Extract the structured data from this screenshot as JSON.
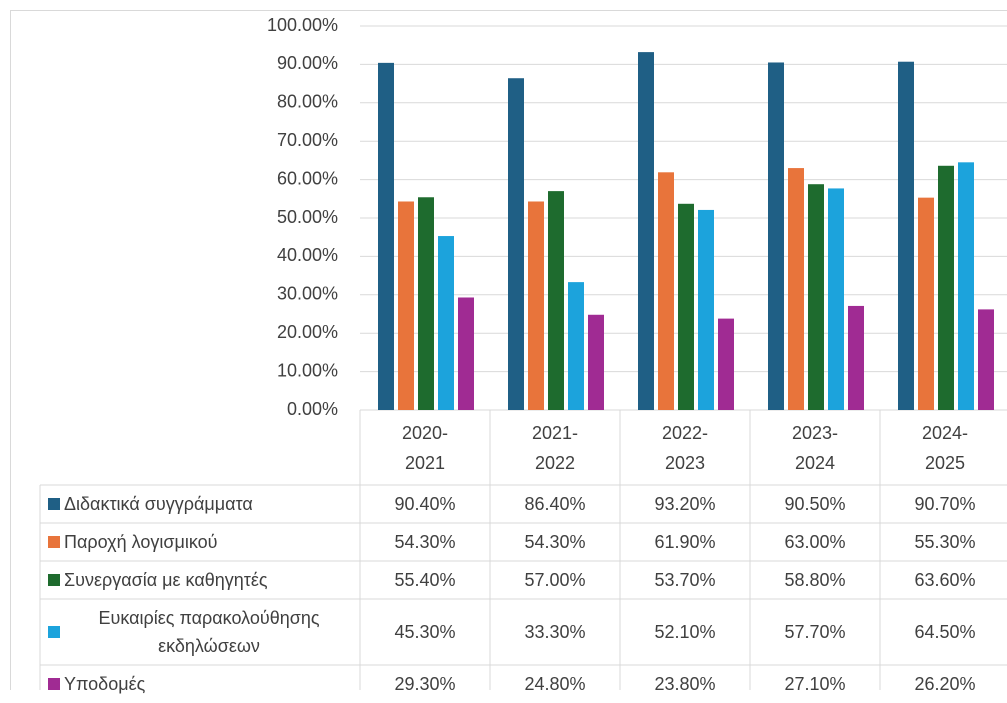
{
  "chart_data": {
    "type": "bar",
    "categories": [
      "2020-2021",
      "2021-2022",
      "2022-2023",
      "2023-2024",
      "2024-2025"
    ],
    "series": [
      {
        "name": "Διδακτικά συγγράμματα",
        "color": "#1f5f85",
        "values": [
          90.4,
          86.4,
          93.2,
          90.5,
          90.7
        ],
        "value_labels": [
          "90.40%",
          "86.40%",
          "93.20%",
          "90.50%",
          "90.70%"
        ]
      },
      {
        "name": "Παροχή λογισμικού",
        "color": "#e8743b",
        "values": [
          54.3,
          54.3,
          61.9,
          63.0,
          55.3
        ],
        "value_labels": [
          "54.30%",
          "54.30%",
          "61.90%",
          "63.00%",
          "55.30%"
        ]
      },
      {
        "name": "Συνεργασία με καθηγητές",
        "color": "#1e6b2e",
        "values": [
          55.4,
          57.0,
          53.7,
          58.8,
          63.6
        ],
        "value_labels": [
          "55.40%",
          "57.00%",
          "53.70%",
          "58.80%",
          "63.60%"
        ]
      },
      {
        "name": "Ευκαιρίες παρακολούθησης εκδηλώσεων",
        "color": "#1ca3dc",
        "values": [
          45.3,
          33.3,
          52.1,
          57.7,
          64.5
        ],
        "value_labels": [
          "45.30%",
          "33.30%",
          "52.10%",
          "57.70%",
          "64.50%"
        ]
      },
      {
        "name": "Υποδομές",
        "color": "#a02b93",
        "values": [
          29.3,
          24.8,
          23.8,
          27.1,
          26.2
        ],
        "value_labels": [
          "29.30%",
          "24.80%",
          "23.80%",
          "27.10%",
          "26.20%"
        ]
      }
    ],
    "ylim": [
      0,
      100
    ],
    "yticks": [
      {
        "value": 0,
        "label": "0.00%"
      },
      {
        "value": 10,
        "label": "10.00%"
      },
      {
        "value": 20,
        "label": "20.00%"
      },
      {
        "value": 30,
        "label": "30.00%"
      },
      {
        "value": 40,
        "label": "40.00%"
      },
      {
        "value": 50,
        "label": "50.00%"
      },
      {
        "value": 60,
        "label": "60.00%"
      },
      {
        "value": 70,
        "label": "70.00%"
      },
      {
        "value": 80,
        "label": "80.00%"
      },
      {
        "value": 90,
        "label": "90.00%"
      },
      {
        "value": 100,
        "label": "100.00%"
      }
    ],
    "grid": true
  }
}
